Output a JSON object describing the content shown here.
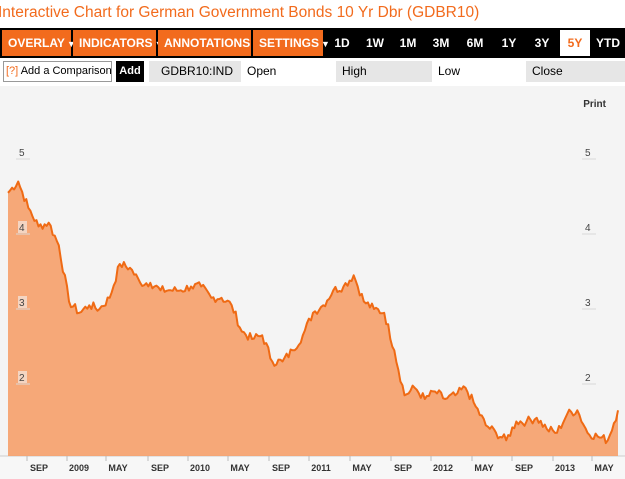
{
  "title": "Interactive Chart for German Government Bonds 10 Yr Dbr (GDBR10)",
  "menus": [
    {
      "label": "OVERLAY",
      "caret": "▼"
    },
    {
      "label": "INDICATORS",
      "caret": "▼"
    },
    {
      "label": "ANNOTATIONS",
      "caret": "▼"
    },
    {
      "label": "SETTINGS",
      "caret": "▼"
    }
  ],
  "ranges": [
    "1D",
    "1W",
    "1M",
    "3M",
    "6M",
    "1Y",
    "3Y",
    "5Y",
    "YTD"
  ],
  "active_range": "5Y",
  "subbar": {
    "compare_icon": "[?]",
    "compare_label": "Add a Comparison",
    "add_label": "Add",
    "ticker": "GDBR10:IND",
    "open_label": "Open",
    "high_label": "High",
    "low_label": "Low",
    "close_label": "Close"
  },
  "print_label": "Print",
  "colors": {
    "accent": "#f26b1d",
    "fill": "#f5a16d",
    "line": "#ef6a14",
    "toolbar": "#000000",
    "chart_bg": "#f4f4f4"
  },
  "chart_data": {
    "type": "area",
    "ylim": [
      1.0,
      5.6
    ],
    "y_ticks": [
      "5",
      "4",
      "3",
      "2"
    ],
    "x_ticks": [
      "SEP",
      "2009",
      "MAY",
      "SEP",
      "2010",
      "MAY",
      "SEP",
      "2011",
      "MAY",
      "SEP",
      "2012",
      "MAY",
      "SEP",
      "2013",
      "MAY"
    ],
    "x": [
      "2008-06",
      "2008-07",
      "2008-08",
      "2008-09",
      "2008-10",
      "2008-11",
      "2008-12",
      "2009-01",
      "2009-02",
      "2009-03",
      "2009-04",
      "2009-05",
      "2009-06",
      "2009-07",
      "2009-08",
      "2009-09",
      "2009-10",
      "2009-11",
      "2009-12",
      "2010-01",
      "2010-02",
      "2010-03",
      "2010-04",
      "2010-05",
      "2010-06",
      "2010-07",
      "2010-08",
      "2010-09",
      "2010-10",
      "2010-11",
      "2010-12",
      "2011-01",
      "2011-02",
      "2011-03",
      "2011-04",
      "2011-05",
      "2011-06",
      "2011-07",
      "2011-08",
      "2011-09",
      "2011-10",
      "2011-11",
      "2011-12",
      "2012-01",
      "2012-02",
      "2012-03",
      "2012-04",
      "2012-05",
      "2012-06",
      "2012-07",
      "2012-08",
      "2012-09",
      "2012-10",
      "2012-11",
      "2012-12",
      "2013-01",
      "2013-02",
      "2013-03",
      "2013-04",
      "2013-05",
      "2013-06"
    ],
    "values": [
      4.55,
      4.7,
      4.35,
      4.1,
      4.15,
      3.85,
      3.1,
      2.95,
      3.05,
      3.0,
      3.15,
      3.6,
      3.55,
      3.35,
      3.35,
      3.25,
      3.25,
      3.25,
      3.3,
      3.3,
      3.15,
      3.15,
      3.05,
      2.7,
      2.6,
      2.65,
      2.3,
      2.3,
      2.45,
      2.65,
      2.95,
      3.05,
      3.25,
      3.3,
      3.45,
      3.1,
      3.0,
      2.95,
      2.45,
      1.85,
      1.95,
      1.8,
      1.9,
      1.8,
      1.85,
      1.95,
      1.7,
      1.45,
      1.35,
      1.25,
      1.5,
      1.5,
      1.55,
      1.4,
      1.35,
      1.6,
      1.65,
      1.35,
      1.3,
      1.25,
      1.65
    ]
  }
}
